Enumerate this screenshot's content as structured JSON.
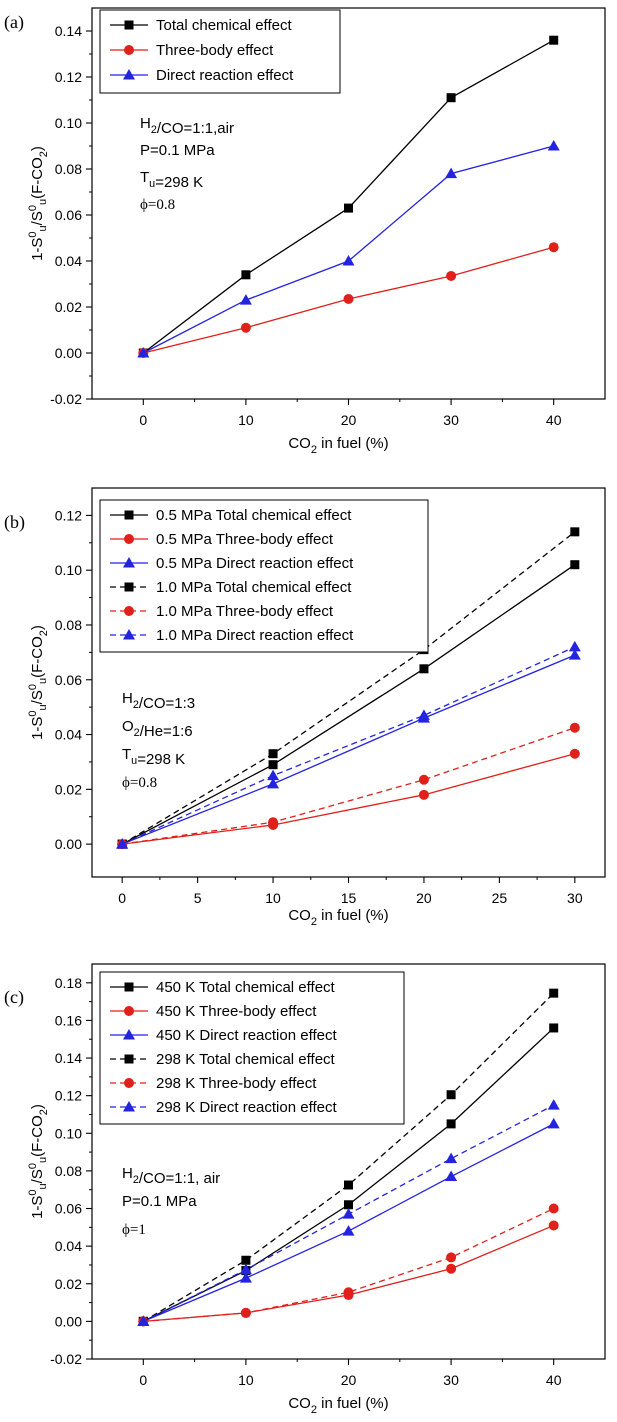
{
  "chart_data": [
    {
      "panel": "(a)",
      "type": "line",
      "x": [
        0,
        10,
        20,
        30,
        40
      ],
      "xlabel": "CO₂ in fuel (%)",
      "ylabel": "1-S⁰ᵤ/S⁰ᵤ(F-CO₂)",
      "xlim": [
        -5,
        45
      ],
      "ylim": [
        -0.02,
        0.15
      ],
      "xticks": [
        0,
        10,
        20,
        30,
        40
      ],
      "yticks": [
        -0.02,
        0.0,
        0.02,
        0.04,
        0.06,
        0.08,
        0.1,
        0.12,
        0.14
      ],
      "legend_position": "top-left",
      "annotations": [
        "H₂/CO=1:1,air",
        "P=0.1 MPa",
        "Tᵤ=298 K",
        "ϕ=0.8"
      ],
      "series": [
        {
          "name": "Total chemical effect",
          "color": "#000000",
          "marker": "square",
          "dash": "solid",
          "values": [
            0.0,
            0.034,
            0.063,
            0.111,
            0.136
          ]
        },
        {
          "name": "Three-body effect",
          "color": "#e0201b",
          "marker": "circle",
          "dash": "solid",
          "values": [
            0.0,
            0.011,
            0.0235,
            0.0335,
            0.046
          ]
        },
        {
          "name": "Direct reaction effect",
          "color": "#2323e0",
          "marker": "triangle",
          "dash": "solid",
          "values": [
            0.0,
            0.023,
            0.04,
            0.078,
            0.09
          ]
        }
      ]
    },
    {
      "panel": "(b)",
      "type": "line",
      "x": [
        0,
        10,
        20,
        30
      ],
      "xlabel": "CO₂ in fuel (%)",
      "ylabel": "1-S⁰ᵤ/S⁰ᵤ(F-CO₂)",
      "xlim": [
        -2,
        32
      ],
      "ylim": [
        -0.012,
        0.13
      ],
      "xticks": [
        0,
        5,
        10,
        15,
        20,
        25,
        30
      ],
      "yticks": [
        0.0,
        0.02,
        0.04,
        0.06,
        0.08,
        0.1,
        0.12
      ],
      "legend_position": "top-left",
      "annotations": [
        "H₂/CO=1:3",
        "O₂/He=1:6",
        "Tᵤ=298 K",
        "ϕ=0.8"
      ],
      "series": [
        {
          "name": "0.5 MPa  Total chemical effect",
          "color": "#000000",
          "marker": "square",
          "dash": "solid",
          "values": [
            0.0,
            0.029,
            0.064,
            0.102
          ]
        },
        {
          "name": "0.5 MPa  Three-body effect",
          "color": "#e0201b",
          "marker": "circle",
          "dash": "solid",
          "values": [
            0.0,
            0.007,
            0.018,
            0.033
          ]
        },
        {
          "name": "0.5 MPa  Direct reaction effect",
          "color": "#2323e0",
          "marker": "triangle",
          "dash": "solid",
          "values": [
            0.0,
            0.022,
            0.046,
            0.069
          ]
        },
        {
          "name": "1.0 MPa  Total chemical effect",
          "color": "#000000",
          "marker": "square",
          "dash": "dashed",
          "values": [
            0.0,
            0.033,
            0.071,
            0.114
          ]
        },
        {
          "name": "1.0 MPa  Three-body effect",
          "color": "#e0201b",
          "marker": "circle",
          "dash": "dashed",
          "values": [
            0.0,
            0.008,
            0.0235,
            0.0425
          ]
        },
        {
          "name": "1.0 MPa  Direct reaction effect",
          "color": "#2323e0",
          "marker": "triangle",
          "dash": "dashed",
          "values": [
            0.0,
            0.025,
            0.047,
            0.072
          ]
        }
      ]
    },
    {
      "panel": "(c)",
      "type": "line",
      "x": [
        0,
        10,
        20,
        30,
        40
      ],
      "xlabel": "CO₂ in fuel (%)",
      "ylabel": "1-S⁰ᵤ/S⁰ᵤ(F-CO₂)",
      "xlim": [
        -5,
        45
      ],
      "ylim": [
        -0.02,
        0.19
      ],
      "xticks": [
        0,
        10,
        20,
        30,
        40
      ],
      "yticks": [
        -0.02,
        0.0,
        0.02,
        0.04,
        0.06,
        0.08,
        0.1,
        0.12,
        0.14,
        0.16,
        0.18
      ],
      "legend_position": "top-left",
      "annotations": [
        "H₂/CO=1:1, air",
        "P=0.1 MPa",
        "ϕ=1"
      ],
      "series": [
        {
          "name": "450 K Total chemical effect",
          "color": "#000000",
          "marker": "square",
          "dash": "solid",
          "values": [
            0.0,
            0.027,
            0.062,
            0.105,
            0.156
          ]
        },
        {
          "name": "450 K Three-body effect",
          "color": "#e0201b",
          "marker": "circle",
          "dash": "solid",
          "values": [
            0.0,
            0.0045,
            0.014,
            0.028,
            0.051
          ]
        },
        {
          "name": "450 K Direct reaction effect",
          "color": "#2323e0",
          "marker": "triangle",
          "dash": "solid",
          "values": [
            0.0,
            0.023,
            0.048,
            0.077,
            0.105
          ]
        },
        {
          "name": "298 K Total chemical effect",
          "color": "#000000",
          "marker": "square",
          "dash": "dashed",
          "values": [
            0.0,
            0.0325,
            0.0725,
            0.1205,
            0.1745
          ]
        },
        {
          "name": "298 K Three-body effect",
          "color": "#e0201b",
          "marker": "circle",
          "dash": "dashed",
          "values": [
            0.0,
            0.0045,
            0.0155,
            0.034,
            0.06
          ]
        },
        {
          "name": "298 K Direct reaction effect",
          "color": "#2323e0",
          "marker": "triangle",
          "dash": "dashed",
          "values": [
            0.0,
            0.0275,
            0.057,
            0.0865,
            0.115
          ]
        }
      ]
    }
  ]
}
